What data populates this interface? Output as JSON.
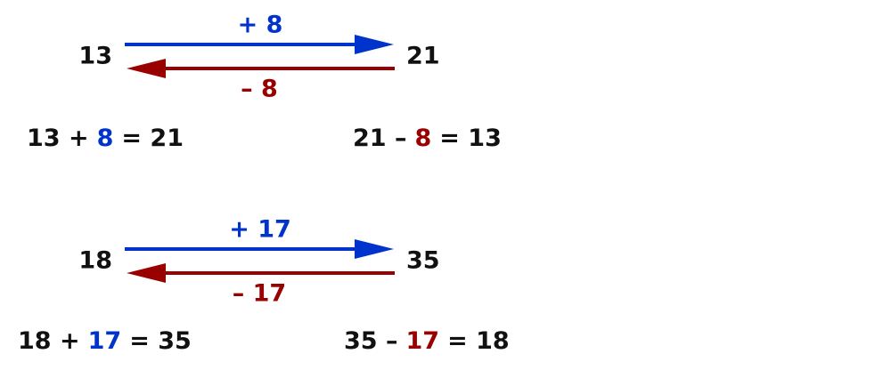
{
  "examples": [
    {
      "start": "13",
      "end": "21",
      "forward_label": "+ 8",
      "backward_label": "– 8",
      "addition": {
        "left": "13 +",
        "highlight": "8",
        "right": "= 21"
      },
      "subtraction": {
        "left": "21 –",
        "highlight": "8",
        "right": "= 13"
      }
    },
    {
      "start": "18",
      "end": "35",
      "forward_label": "+ 17",
      "backward_label": "– 17",
      "addition": {
        "left": "18 +",
        "highlight": "17",
        "right": "= 35"
      },
      "subtraction": {
        "left": "35 –",
        "highlight": "17",
        "right": "= 18"
      }
    }
  ]
}
